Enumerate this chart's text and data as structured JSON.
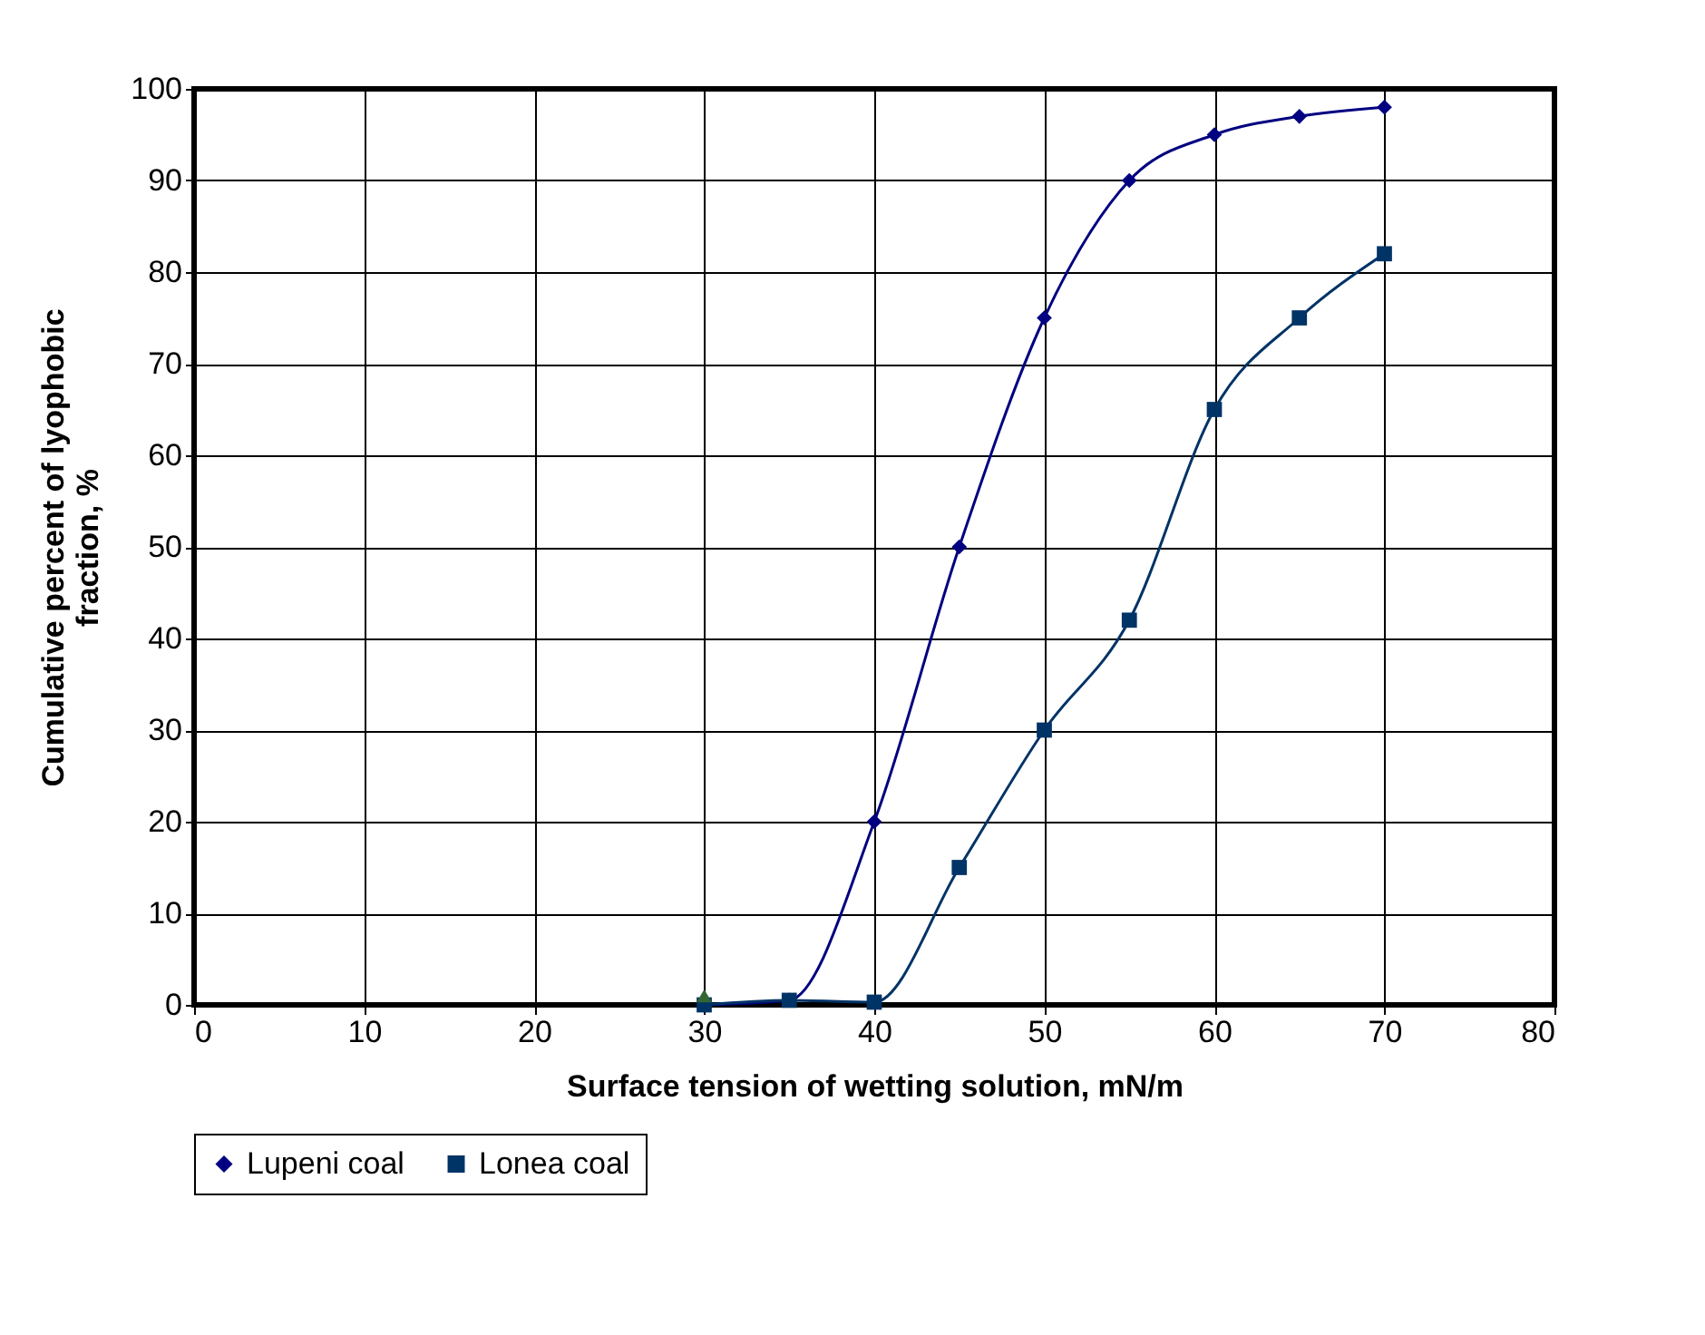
{
  "chart_data": {
    "type": "line",
    "xlabel": "Surface tension of wetting solution, mN/m",
    "ylabel": "Cumulative percent of lyophobic fraction, %",
    "xlim": [
      0,
      80
    ],
    "xticks": [
      0,
      10,
      20,
      30,
      40,
      50,
      60,
      70,
      80
    ],
    "ylim": [
      0,
      100
    ],
    "yticks": [
      0,
      10,
      20,
      30,
      40,
      50,
      60,
      70,
      80,
      90,
      100
    ],
    "grid": true,
    "legend": "bottom",
    "series": [
      {
        "name": "Lupeni coal",
        "color": "#000080",
        "marker": "diamond",
        "x": [
          30,
          35,
          40,
          45,
          50,
          55,
          60,
          65,
          70
        ],
        "values": [
          0,
          0.5,
          20,
          50,
          75,
          90,
          95,
          97,
          98
        ]
      },
      {
        "name": "Lonea coal",
        "color": "#003366",
        "marker": "square",
        "x": [
          30,
          35,
          40,
          45,
          50,
          55,
          60,
          65,
          70
        ],
        "values": [
          0,
          0.5,
          0.3,
          15,
          30,
          42,
          65,
          75,
          82
        ]
      },
      {
        "type": "scatter",
        "color": "#336633",
        "marker": "triangle",
        "x": [
          30
        ],
        "values": [
          1
        ]
      }
    ]
  }
}
